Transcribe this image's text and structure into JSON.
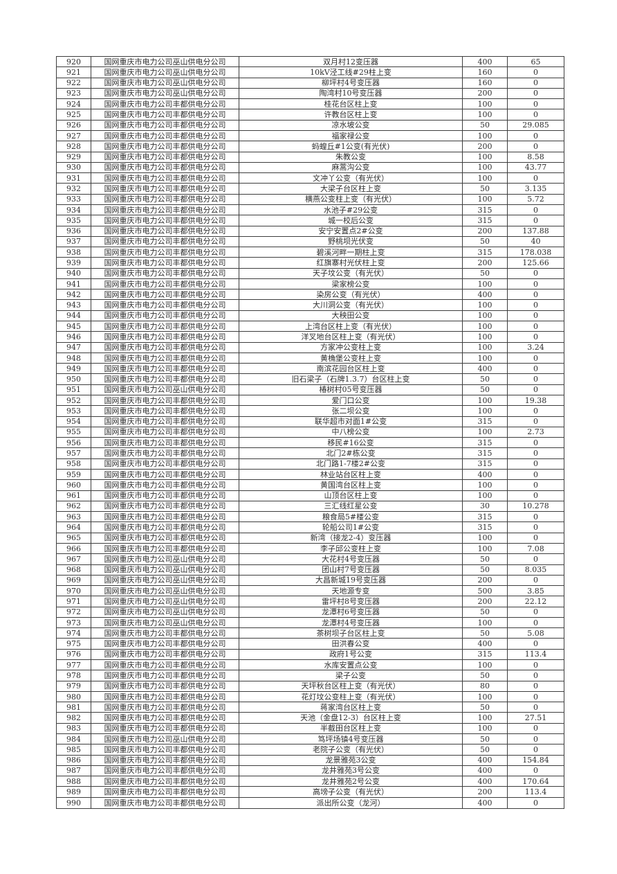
{
  "table": {
    "rows": [
      [
        "920",
        "国网重庆市电力公司巫山供电分公司",
        "双月村12变压器",
        "400",
        "65"
      ],
      [
        "921",
        "国网重庆市电力公司巫山供电分公司",
        "10kV泾工线#29柱上变",
        "160",
        "0"
      ],
      [
        "922",
        "国网重庆市电力公司巫山供电分公司",
        "柳坪村4号变压器",
        "160",
        "0"
      ],
      [
        "923",
        "国网重庆市电力公司巫山供电分公司",
        "陶湾村10号变压器",
        "200",
        "0"
      ],
      [
        "924",
        "国网重庆市电力公司丰都供电分公司",
        "桂花台区柱上变",
        "100",
        "0"
      ],
      [
        "925",
        "国网重庆市电力公司丰都供电分公司",
        "许教台区柱上变",
        "100",
        "0"
      ],
      [
        "926",
        "国网重庆市电力公司丰都供电分公司",
        "凉水坡公变",
        "50",
        "29.085"
      ],
      [
        "927",
        "国网重庆市电力公司丰都供电分公司",
        "福家禄公变",
        "100",
        "0"
      ],
      [
        "928",
        "国网重庆市电力公司丰都供电分公司",
        "蚂蝗丘#1公变(有光伏)",
        "200",
        "0"
      ],
      [
        "929",
        "国网重庆市电力公司丰都供电分公司",
        "朱教公变",
        "100",
        "8.58"
      ],
      [
        "930",
        "国网重庆市电力公司丰都供电分公司",
        "麻蒿沟公变",
        "100",
        "43.77"
      ],
      [
        "931",
        "国网重庆市电力公司丰都供电分公司",
        "文冲丫公变（有光伏）",
        "100",
        "0"
      ],
      [
        "932",
        "国网重庆市电力公司丰都供电分公司",
        "大梁子台区柱上变",
        "50",
        "3.135"
      ],
      [
        "933",
        "国网重庆市电力公司丰都供电分公司",
        "横燕公变柱上变（有光伏）",
        "100",
        "5.72"
      ],
      [
        "934",
        "国网重庆市电力公司丰都供电分公司",
        "水池子#29公变",
        "315",
        "0"
      ],
      [
        "935",
        "国网重庆市电力公司丰都供电分公司",
        "城一校后公变",
        "315",
        "0"
      ],
      [
        "936",
        "国网重庆市电力公司丰都供电分公司",
        "安宁安置点2#公变",
        "200",
        "137.88"
      ],
      [
        "937",
        "国网重庆市电力公司丰都供电分公司",
        "野桃坝光伏变",
        "50",
        "40"
      ],
      [
        "938",
        "国网重庆市电力公司丰都供电分公司",
        "碧溪河畔一期柱上变",
        "315",
        "178.038"
      ],
      [
        "939",
        "国网重庆市电力公司丰都供电分公司",
        "红旗寨村光伏柱上变",
        "200",
        "125.66"
      ],
      [
        "940",
        "国网重庆市电力公司丰都供电分公司",
        "天子坟公变（有光伏）",
        "50",
        "0"
      ],
      [
        "941",
        "国网重庆市电力公司丰都供电分公司",
        "梁家榜公变",
        "100",
        "0"
      ],
      [
        "942",
        "国网重庆市电力公司丰都供电分公司",
        "染房公变（有光伏）",
        "400",
        "0"
      ],
      [
        "943",
        "国网重庆市电力公司丰都供电分公司",
        "大川洞公变（有光伏）",
        "100",
        "0"
      ],
      [
        "944",
        "国网重庆市电力公司丰都供电分公司",
        "大秧田公变",
        "100",
        "0"
      ],
      [
        "945",
        "国网重庆市电力公司丰都供电分公司",
        "上湾台区柱上变（有光伏）",
        "100",
        "0"
      ],
      [
        "946",
        "国网重庆市电力公司丰都供电分公司",
        "洋叉地台区柱上变（有光伏）",
        "100",
        "0"
      ],
      [
        "947",
        "国网重庆市电力公司丰都供电分公司",
        "方家冲公变柱上变",
        "100",
        "3.24"
      ],
      [
        "948",
        "国网重庆市电力公司丰都供电分公司",
        "黄桷堡公变柱上变",
        "100",
        "0"
      ],
      [
        "949",
        "国网重庆市电力公司丰都供电分公司",
        "南滨花园台区柱上变",
        "400",
        "0"
      ],
      [
        "950",
        "国网重庆市电力公司丰都供电分公司",
        "旧石梁子（石牌1.3.7）台区柱上变",
        "50",
        "0"
      ],
      [
        "951",
        "国网重庆市电力公司巫山供电分公司",
        "椿树村05号变压器",
        "50",
        "0"
      ],
      [
        "952",
        "国网重庆市电力公司丰都供电分公司",
        "爱门口公变",
        "100",
        "19.38"
      ],
      [
        "953",
        "国网重庆市电力公司丰都供电分公司",
        "张二坝公变",
        "100",
        "0"
      ],
      [
        "954",
        "国网重庆市电力公司丰都供电分公司",
        "联华超市对面1#公变",
        "315",
        "0"
      ],
      [
        "955",
        "国网重庆市电力公司丰都供电分公司",
        "中八榜公变",
        "100",
        "2.73"
      ],
      [
        "956",
        "国网重庆市电力公司丰都供电分公司",
        "移民#16公变",
        "315",
        "0"
      ],
      [
        "957",
        "国网重庆市电力公司丰都供电分公司",
        "北门2#栋公变",
        "315",
        "0"
      ],
      [
        "958",
        "国网重庆市电力公司丰都供电分公司",
        "北门路1-7楼2#公变",
        "315",
        "0"
      ],
      [
        "959",
        "国网重庆市电力公司丰都供电分公司",
        "林业站台区柱上变",
        "400",
        "0"
      ],
      [
        "960",
        "国网重庆市电力公司丰都供电分公司",
        "黄国湾台区柱上变",
        "100",
        "0"
      ],
      [
        "961",
        "国网重庆市电力公司丰都供电分公司",
        "山顶台区柱上变",
        "100",
        "0"
      ],
      [
        "962",
        "国网重庆市电力公司丰都供电分公司",
        "三汇线红星公变",
        "30",
        "10.278"
      ],
      [
        "963",
        "国网重庆市电力公司丰都供电分公司",
        "粮食局5#楼公变",
        "315",
        "0"
      ],
      [
        "964",
        "国网重庆市电力公司丰都供电分公司",
        "轮船公司1#公变",
        "315",
        "0"
      ],
      [
        "965",
        "国网重庆市电力公司丰都供电分公司",
        "新湾（接龙2-4）变压器",
        "100",
        "0"
      ],
      [
        "966",
        "国网重庆市电力公司丰都供电分公司",
        "李子邱公变柱上变",
        "100",
        "7.08"
      ],
      [
        "967",
        "国网重庆市电力公司巫山供电分公司",
        "大花村4号变压器",
        "50",
        "0"
      ],
      [
        "968",
        "国网重庆市电力公司巫山供电分公司",
        "团山村7号变压器",
        "50",
        "8.035"
      ],
      [
        "969",
        "国网重庆市电力公司巫山供电分公司",
        "大昌新城19号变压器",
        "200",
        "0"
      ],
      [
        "970",
        "国网重庆市电力公司巫山供电分公司",
        "天地源专变",
        "500",
        "3.85"
      ],
      [
        "971",
        "国网重庆市电力公司巫山供电分公司",
        "雷坪村8号变压器",
        "200",
        "22.12"
      ],
      [
        "972",
        "国网重庆市电力公司巫山供电分公司",
        "龙潭村6号变压器",
        "50",
        "0"
      ],
      [
        "973",
        "国网重庆市电力公司巫山供电分公司",
        "龙潭村4号变压器",
        "100",
        "0"
      ],
      [
        "974",
        "国网重庆市电力公司丰都供电分公司",
        "茶树坝子台区柱上变",
        "50",
        "5.08"
      ],
      [
        "975",
        "国网重庆市电力公司丰都供电分公司",
        "田洪春公变",
        "400",
        "0"
      ],
      [
        "976",
        "国网重庆市电力公司丰都供电分公司",
        "政府1号公变",
        "315",
        "113.4"
      ],
      [
        "977",
        "国网重庆市电力公司丰都供电分公司",
        "水库安置点公变",
        "100",
        "0"
      ],
      [
        "978",
        "国网重庆市电力公司丰都供电分公司",
        "梁子公变",
        "50",
        "0"
      ],
      [
        "979",
        "国网重庆市电力公司丰都供电分公司",
        "天坪秋台区柱上变（有光伏）",
        "80",
        "0"
      ],
      [
        "980",
        "国网重庆市电力公司丰都供电分公司",
        "花灯坟公变柱上变（有光伏）",
        "100",
        "0"
      ],
      [
        "981",
        "国网重庆市电力公司丰都供电分公司",
        "蒋家湾台区柱上变",
        "50",
        "0"
      ],
      [
        "982",
        "国网重庆市电力公司丰都供电分公司",
        "天池（金盘12-3）台区柱上变",
        "100",
        "27.51"
      ],
      [
        "983",
        "国网重庆市电力公司丰都供电分公司",
        "半截田台区柱上变",
        "100",
        "0"
      ],
      [
        "984",
        "国网重庆市电力公司巫山供电分公司",
        "笃坪场镇4号变压器",
        "50",
        "0"
      ],
      [
        "985",
        "国网重庆市电力公司丰都供电分公司",
        "老院子公变（有光伏）",
        "50",
        "0"
      ],
      [
        "986",
        "国网重庆市电力公司丰都供电分公司",
        "龙景雅苑3公变",
        "400",
        "154.84"
      ],
      [
        "987",
        "国网重庆市电力公司丰都供电分公司",
        "龙井雅苑3号公变",
        "400",
        "0"
      ],
      [
        "988",
        "国网重庆市电力公司丰都供电分公司",
        "龙井雅苑2号公变",
        "400",
        "170.64"
      ],
      [
        "989",
        "国网重庆市电力公司丰都供电分公司",
        "高塝子公变（有光伏）",
        "200",
        "113.4"
      ],
      [
        "990",
        "国网重庆市电力公司丰都供电分公司",
        "派出所公变（龙河）",
        "400",
        "0"
      ]
    ]
  }
}
